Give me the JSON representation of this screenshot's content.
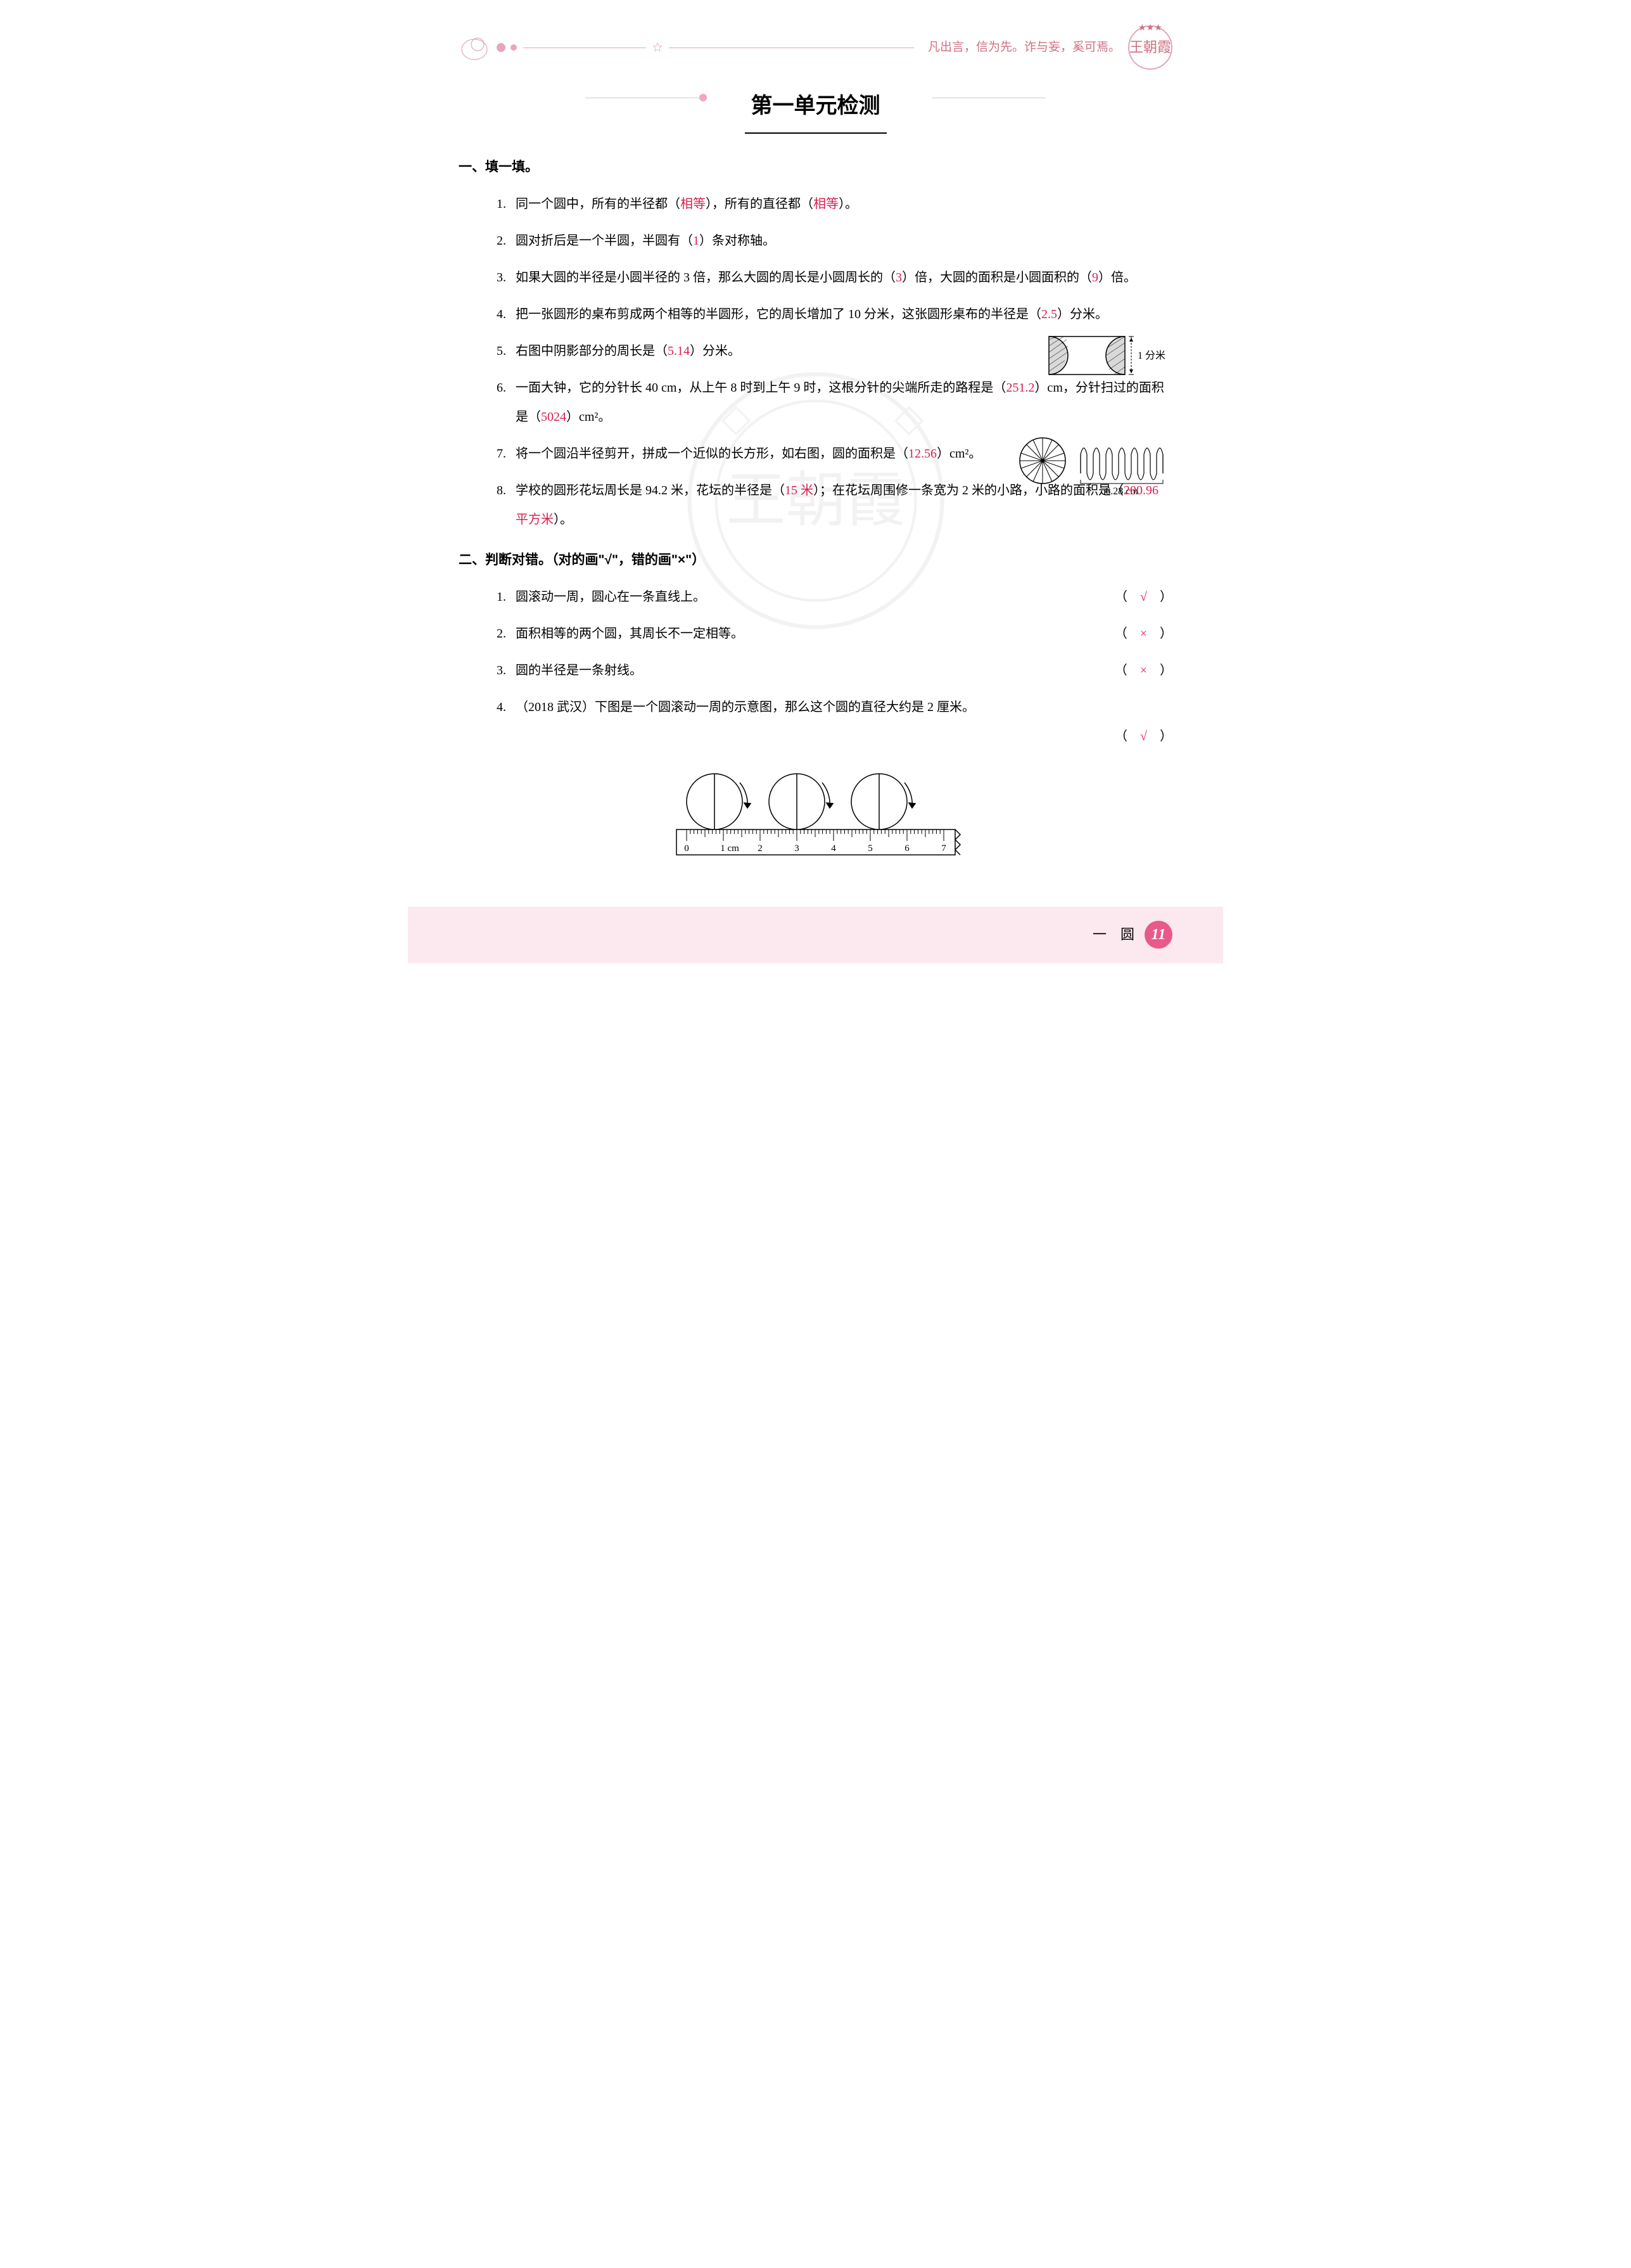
{
  "header": {
    "motto": "凡出言，信为先。诈与妄，奚可焉。",
    "badge_text": "王朝霞"
  },
  "title": "第一单元检测",
  "section1": {
    "head": "一、填一填。",
    "q1": {
      "num": "1.",
      "t1": "同一个圆中，所有的半径都（",
      "a1": "相等",
      "t2": "），所有的直径都（",
      "a2": "相等",
      "t3": "）。"
    },
    "q2": {
      "num": "2.",
      "t1": "圆对折后是一个半圆，半圆有（",
      "a1": "1",
      "t2": "）条对称轴。"
    },
    "q3": {
      "num": "3.",
      "t1": "如果大圆的半径是小圆半径的 3 倍，那么大圆的周长是小圆周长的（",
      "a1": "3",
      "t2": "）倍，大圆的面积是小圆面积的（",
      "a2": "9",
      "t3": "）倍。"
    },
    "q4": {
      "num": "4.",
      "t1": "把一张圆形的桌布剪成两个相等的半圆形，它的周长增加了 10 分米，这张圆形桌布的半径是（",
      "a1": "2.5",
      "t2": "）分米。"
    },
    "q5": {
      "num": "5.",
      "t1": "右图中阴影部分的周长是（",
      "a1": "5.14",
      "t2": "）分米。",
      "label": "1 分米"
    },
    "q6": {
      "num": "6.",
      "t1": "一面大钟，它的分针长 40 cm，从上午 8 时到上午 9 时，这根分针的尖端所走的路程是（",
      "a1": "251.2",
      "t2": "）cm，分针扫过的面积是（",
      "a2": "5024",
      "t3": "）cm²。"
    },
    "q7": {
      "num": "7.",
      "t1": "将一个圆沿半径剪开，拼成一个近似的长方形，如右图，圆的面积是（",
      "a1": "12.56",
      "t2": "）cm²。",
      "label": "6.28 cm"
    },
    "q8": {
      "num": "8.",
      "t1": "学校的圆形花坛周长是 94.2 米，花坛的半径是（",
      "a1": "15 米",
      "t2": "）；在花坛周围修一条宽为 2 米的小路，小路的面积是（",
      "a2": "200.96 平方米",
      "t3": "）。"
    }
  },
  "section2": {
    "head": "二、判断对错。（对的画\"√\"，错的画\"×\"）",
    "q1": {
      "num": "1.",
      "text": "圆滚动一周，圆心在一条直线上。",
      "mark": "√"
    },
    "q2": {
      "num": "2.",
      "text": "面积相等的两个圆，其周长不一定相等。",
      "mark": "×"
    },
    "q3": {
      "num": "3.",
      "text": "圆的半径是一条射线。",
      "mark": "×"
    },
    "q4": {
      "num": "4.",
      "text": "（2018 武汉）下图是一个圆滚动一周的示意图，那么这个圆的直径大约是 2 厘米。",
      "mark": "√"
    },
    "ruler_ticks": [
      "0",
      "1 cm",
      "2",
      "3",
      "4",
      "5",
      "6",
      "7"
    ]
  },
  "footer": {
    "chapter": "一　圆",
    "page": "11"
  },
  "colors": {
    "answer": "#d82050",
    "pink": "#e6a8b8",
    "footer_bg": "#fce8ef",
    "page_circle": "#e85a8a"
  }
}
